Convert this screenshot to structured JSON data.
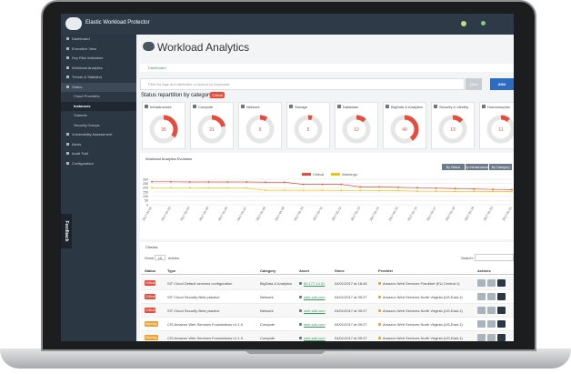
{
  "app": {
    "brand": "Elastic Workload Protector"
  },
  "sidebar": {
    "items": [
      "Dashboard",
      "Executive View",
      "Key Risk Indicators",
      "Workload Analytics",
      "Trends & Statistics",
      "Status",
      "Cloud Providers",
      "Instances",
      "Subnets",
      "Security Groups",
      "Vulnerability Assessment",
      "Alerts",
      "Audit Trail",
      "Configuration"
    ]
  },
  "feedback": "Feedback",
  "page": {
    "title": "Workload Analytics",
    "breadcrumb": "Dashboard",
    "search_placeholder": "Filter by tags and attributes or search by keywords",
    "clear": "Clear",
    "and": "AND"
  },
  "status": {
    "title": "Status repartition by category",
    "badge": "Critical",
    "categories": [
      {
        "label": "Infrastructure",
        "value": 35
      },
      {
        "label": "Compute",
        "value": 21
      },
      {
        "label": "Network",
        "value": 9
      },
      {
        "label": "Storage",
        "value": 5
      },
      {
        "label": "Database",
        "value": 12
      },
      {
        "label": "BigData & Analytics",
        "value": 40
      },
      {
        "label": "Security & Identity",
        "value": 13
      },
      {
        "label": "Homomorphic",
        "value": 11
      }
    ]
  },
  "chart": {
    "type": "line",
    "title": "Workload Analytics Evolution",
    "buttons": [
      "By Status",
      "By Infrastructure",
      "By Category"
    ],
    "x": [
      "2017-01-02",
      "2017-01-03",
      "2017-01-04",
      "2017-01-05",
      "2017-01-06",
      "2017-01-07",
      "2017-01-08",
      "2017-01-09",
      "2017-01-10",
      "2017-01-11",
      "2017-01-12",
      "2017-01-13",
      "2017-01-14",
      "2017-01-15",
      "2017-01-16",
      "2017-01-17",
      "2017-01-18",
      "2017-01-19",
      "2017-01-20",
      "2017-01-21"
    ],
    "series": [
      {
        "name": "Critical",
        "color": "#e74c3c",
        "values": [
          270,
          270,
          268,
          268,
          268,
          268,
          265,
          265,
          240,
          240,
          240,
          210,
          210,
          205,
          200,
          195,
          190,
          185,
          180,
          178
        ]
      },
      {
        "name": "Warnings",
        "color": "#f1c40f",
        "values": [
          200,
          200,
          200,
          198,
          198,
          195,
          170,
          170,
          170,
          170,
          168,
          168,
          165,
          165,
          160,
          160,
          158,
          158,
          155,
          155
        ]
      }
    ],
    "ylim": [
      0,
      300
    ],
    "yticks": [
      0,
      50,
      100,
      150,
      200,
      250,
      300
    ],
    "grid": true
  },
  "checks": {
    "title": "Checks",
    "show": "Show",
    "entries_count": "10",
    "entries": "entries",
    "search": "Search:",
    "columns": [
      "Status",
      "Type",
      "Category",
      "Asset",
      "Since",
      "Provider",
      "Actions"
    ],
    "rows": [
      [
        "Critical",
        "SIT Cloud Default services configuration",
        "BigData & Analytics",
        "80.177.14.51",
        "04/01/2017 at 18:46",
        "Amazon Web Services Frankfurt (EU-Central-1)"
      ],
      [
        "Critical",
        "SIT Cloud Security Best practice",
        "Network",
        "web.sdb.com",
        "04/01/2017 at 09:27",
        "Amazon Web Services North Virginia (US-East-1)"
      ],
      [
        "Critical",
        "SIT Cloud Security Best practice",
        "Network",
        "web.sdb.com",
        "04/01/2017 at 09:27",
        "Amazon Web Services North Virginia (US-East-1)"
      ],
      [
        "Warning",
        "CIS Amazon Web Services Foundations v1.1.0",
        "Compute",
        "web.sdb.com",
        "04/01/2017 at 09:27",
        "Amazon Web Services North Virginia (US-East-1)"
      ],
      [
        "Warning",
        "CIS Amazon Web Services Foundations v1.1.0",
        "Compute",
        "web.sdb.com",
        "04/01/2017 at 09:27",
        "Amazon Web Services North Virginia (US-East-1)"
      ]
    ]
  }
}
